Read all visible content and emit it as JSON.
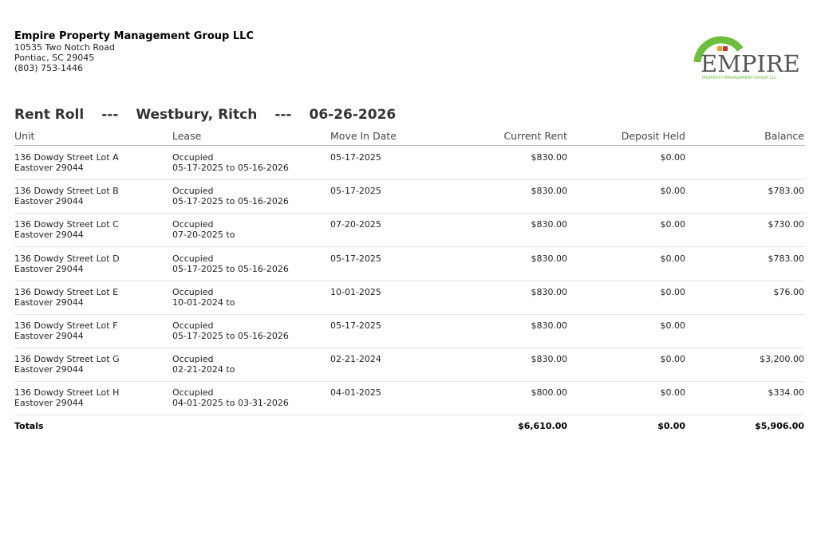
{
  "header": {
    "company": "Empire Property Management Group LLC",
    "address_line1": "10535 Two Notch Road",
    "address_line2": "Pontiac, SC 29045",
    "phone": "(803) 753-1446"
  },
  "logo": {
    "name": "EMPIRE",
    "tagline": "PROPERTY MANAGEMENT GROUP LLC"
  },
  "report": {
    "title_parts": [
      "Rent Roll",
      "---",
      "Westbury, Ritch",
      "---",
      "06-26-2026"
    ]
  },
  "table": {
    "columns": [
      "Unit",
      "Lease",
      "Move In Date",
      "Current Rent",
      "Deposit Held",
      "Balance"
    ],
    "rows": [
      {
        "unit": [
          "136 Dowdy Street Lot A",
          "Eastover 29044"
        ],
        "lease": [
          "Occupied",
          "05-17-2025 to 05-16-2026"
        ],
        "move_in": "05-17-2025",
        "current_rent": "$830.00",
        "deposit_held": "$0.00",
        "balance": null
      },
      {
        "unit": [
          "136 Dowdy Street Lot B",
          "Eastover 29044"
        ],
        "lease": [
          "Occupied",
          "05-17-2025 to 05-16-2026"
        ],
        "move_in": "05-17-2025",
        "current_rent": "$830.00",
        "deposit_held": "$0.00",
        "balance": "$783.00"
      },
      {
        "unit": [
          "136 Dowdy Street Lot C",
          "Eastover 29044"
        ],
        "lease": [
          "Occupied",
          "07-20-2025 to"
        ],
        "move_in": "07-20-2025",
        "current_rent": "$830.00",
        "deposit_held": "$0.00",
        "balance": "$730.00"
      },
      {
        "unit": [
          "136 Dowdy Street Lot D",
          "Eastover 29044"
        ],
        "lease": [
          "Occupied",
          "05-17-2025 to 05-16-2026"
        ],
        "move_in": "05-17-2025",
        "current_rent": "$830.00",
        "deposit_held": "$0.00",
        "balance": "$783.00"
      },
      {
        "unit": [
          "136 Dowdy Street Lot E",
          "Eastover 29044"
        ],
        "lease": [
          "Occupied",
          "10-01-2024 to"
        ],
        "move_in": "10-01-2025",
        "current_rent": "$830.00",
        "deposit_held": "$0.00",
        "balance": "$76.00"
      },
      {
        "unit": [
          "136 Dowdy Street Lot F",
          "Eastover 29044"
        ],
        "lease": [
          "Occupied",
          "05-17-2025 to 05-16-2026"
        ],
        "move_in": "05-17-2025",
        "current_rent": "$830.00",
        "deposit_held": "$0.00",
        "balance": null
      },
      {
        "unit": [
          "136 Dowdy Street Lot G",
          "Eastover 29044"
        ],
        "lease": [
          "Occupied",
          "02-21-2024 to"
        ],
        "move_in": "02-21-2024",
        "current_rent": "$830.00",
        "deposit_held": "$0.00",
        "balance": "$3,200.00"
      },
      {
        "unit": [
          "136 Dowdy Street Lot H",
          "Eastover 29044"
        ],
        "lease": [
          "Occupied",
          "04-01-2025 to 03-31-2026"
        ],
        "move_in": "04-01-2025",
        "current_rent": "$800.00",
        "deposit_held": "$0.00",
        "balance": "$334.00"
      }
    ],
    "totals": {
      "label": "Totals",
      "current_rent": "$6,610.00",
      "deposit_held": "$0.00",
      "balance": "$5,906.00"
    }
  }
}
